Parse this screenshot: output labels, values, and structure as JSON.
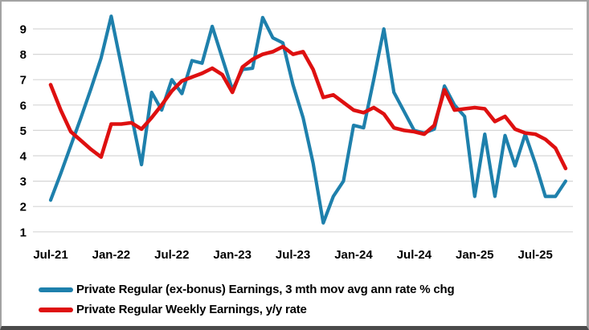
{
  "chart_data": {
    "type": "line",
    "title": "",
    "xlabel": "",
    "ylabel": "",
    "ylim": [
      1,
      9.5
    ],
    "grid": "horizontal",
    "legend_position": "bottom-left",
    "y_axis_ticks": [
      "1",
      "2",
      "3",
      "4",
      "5",
      "6",
      "7",
      "8",
      "9"
    ],
    "x_axis_tick_labels": [
      "Jul-21",
      "Jan-22",
      "Jul-22",
      "Jan-23",
      "Jul-23",
      "Jan-24",
      "Jul-24",
      "Jan-25",
      "Jul-25"
    ],
    "x": [
      "Jul-21",
      "Aug-21",
      "Sep-21",
      "Oct-21",
      "Nov-21",
      "Dec-21",
      "Jan-22",
      "Feb-22",
      "Mar-22",
      "Apr-22",
      "May-22",
      "Jun-22",
      "Jul-22",
      "Aug-22",
      "Sep-22",
      "Oct-22",
      "Nov-22",
      "Dec-22",
      "Jan-23",
      "Feb-23",
      "Mar-23",
      "Apr-23",
      "May-23",
      "Jun-23",
      "Jul-23",
      "Aug-23",
      "Sep-23",
      "Oct-23",
      "Nov-23",
      "Dec-23",
      "Jan-24",
      "Feb-24",
      "Mar-24",
      "Apr-24",
      "May-24",
      "Jun-24",
      "Jul-24",
      "Aug-24",
      "Sep-24",
      "Oct-24",
      "Nov-24",
      "Dec-24",
      "Jan-25",
      "Feb-25",
      "Mar-25",
      "Apr-25",
      "May-25",
      "Jun-25",
      "Jul-25",
      "Aug-25",
      "Sep-25",
      "Oct-25"
    ],
    "series": [
      {
        "name": "Private Regular (ex-bonus) Earnings, 3 mth mov avg ann rate % chg",
        "color": "#1e80ac",
        "values": [
          2.25,
          3.3,
          4.4,
          5.5,
          6.65,
          7.85,
          9.5,
          7.55,
          5.6,
          3.65,
          6.5,
          5.8,
          7.0,
          6.45,
          7.75,
          7.65,
          9.1,
          7.85,
          6.6,
          7.4,
          7.45,
          9.45,
          8.65,
          8.45,
          6.8,
          5.5,
          3.7,
          1.35,
          2.4,
          3.0,
          5.2,
          5.1,
          7.0,
          9.0,
          6.5,
          5.75,
          5.0,
          4.9,
          5.05,
          6.75,
          6.0,
          5.55,
          2.4,
          4.85,
          2.4,
          4.8,
          3.6,
          4.85,
          3.7,
          2.4,
          2.4,
          3.0
        ]
      },
      {
        "name": "Private Regular Weekly Earnings, y/y rate",
        "color": "#de1010",
        "values": [
          6.8,
          5.8,
          4.95,
          4.6,
          4.25,
          3.95,
          5.25,
          5.25,
          5.3,
          5.05,
          5.5,
          6.0,
          6.55,
          6.95,
          7.1,
          7.25,
          7.45,
          7.2,
          6.5,
          7.5,
          7.8,
          8.0,
          8.1,
          8.3,
          8.0,
          8.1,
          7.4,
          6.3,
          6.4,
          6.1,
          5.8,
          5.7,
          5.9,
          5.65,
          5.1,
          5.0,
          4.95,
          4.85,
          5.2,
          6.6,
          5.8,
          5.85,
          5.9,
          5.85,
          5.35,
          5.55,
          5.05,
          4.9,
          4.85,
          4.65,
          4.3,
          3.5
        ]
      }
    ],
    "gridline_color": "#d6d6d6"
  }
}
